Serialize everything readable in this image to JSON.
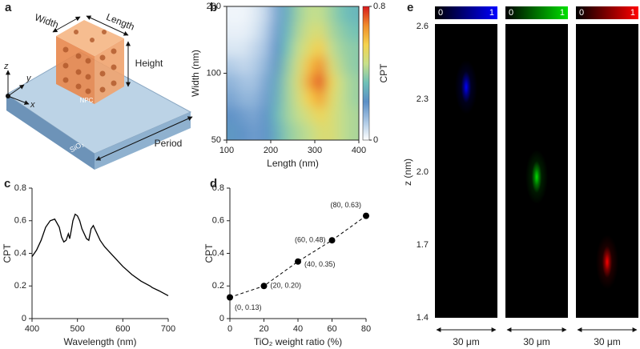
{
  "diagram": {
    "label": "a",
    "width": "Width",
    "length": "Length",
    "height": "Height",
    "period": "Period",
    "particle": "NPC",
    "substrate": "SiO₂",
    "axis_z": "z",
    "axis_y": "y",
    "axis_x": "x"
  },
  "chart_data": [
    {
      "type": "heatmap",
      "label": "b",
      "xlabel": "Length (nm)",
      "ylabel": "Width (nm)",
      "x": [
        112.5,
        137.5,
        162.5,
        187.5,
        212.5,
        237.5,
        262.5,
        287.5,
        312.5,
        337.5,
        362.5,
        387.5
      ],
      "y": [
        55,
        65,
        77,
        92,
        109,
        130,
        154,
        183
      ],
      "z": [
        [
          0.25,
          0.22,
          0.2,
          0.22,
          0.3,
          0.38,
          0.42,
          0.45,
          0.5,
          0.5,
          0.45,
          0.42
        ],
        [
          0.22,
          0.2,
          0.18,
          0.22,
          0.32,
          0.4,
          0.45,
          0.5,
          0.55,
          0.5,
          0.45,
          0.42
        ],
        [
          0.18,
          0.15,
          0.15,
          0.2,
          0.3,
          0.4,
          0.48,
          0.58,
          0.65,
          0.52,
          0.45,
          0.4
        ],
        [
          0.15,
          0.12,
          0.12,
          0.18,
          0.28,
          0.4,
          0.5,
          0.65,
          0.75,
          0.55,
          0.45,
          0.4
        ],
        [
          0.1,
          0.08,
          0.1,
          0.15,
          0.25,
          0.38,
          0.48,
          0.6,
          0.68,
          0.5,
          0.42,
          0.38
        ],
        [
          0.05,
          0.05,
          0.08,
          0.12,
          0.22,
          0.35,
          0.45,
          0.52,
          0.58,
          0.45,
          0.4,
          0.38
        ],
        [
          0.03,
          0.03,
          0.05,
          0.1,
          0.2,
          0.32,
          0.42,
          0.48,
          0.5,
          0.42,
          0.38,
          0.35
        ],
        [
          0.02,
          0.02,
          0.04,
          0.08,
          0.18,
          0.3,
          0.4,
          0.45,
          0.45,
          0.4,
          0.35,
          0.32
        ]
      ],
      "xlim": [
        100,
        400
      ],
      "xticks": [
        100,
        200,
        300,
        400
      ],
      "ylim": [
        50,
        200
      ],
      "yticks": [
        50,
        100,
        200
      ],
      "ylog": true,
      "colorscale": [
        "#ffffff",
        "#a9c6e3",
        "#5b8fc6",
        "#6fc1b8",
        "#c8e08a",
        "#f5d34d",
        "#f08c2a",
        "#d7191c"
      ],
      "colorbar": {
        "label": "CPT",
        "zlim": [
          0,
          0.8
        ],
        "zticks": [
          0,
          0.8
        ]
      }
    },
    {
      "type": "line",
      "label": "c",
      "xlabel": "Wavelength (nm)",
      "ylabel": "CPT",
      "color": "#000000",
      "x": [
        400,
        410,
        420,
        430,
        440,
        450,
        460,
        465,
        470,
        475,
        480,
        483,
        487,
        490,
        495,
        500,
        505,
        510,
        520,
        525,
        530,
        535,
        540,
        550,
        560,
        580,
        600,
        620,
        640,
        660,
        665,
        680,
        700
      ],
      "y": [
        0.38,
        0.42,
        0.48,
        0.56,
        0.6,
        0.61,
        0.56,
        0.5,
        0.47,
        0.48,
        0.52,
        0.49,
        0.55,
        0.6,
        0.64,
        0.63,
        0.6,
        0.55,
        0.49,
        0.48,
        0.55,
        0.57,
        0.54,
        0.48,
        0.44,
        0.38,
        0.32,
        0.27,
        0.23,
        0.2,
        0.19,
        0.17,
        0.14
      ],
      "xlim": [
        400,
        700
      ],
      "xticks": [
        400,
        500,
        600,
        700
      ],
      "ylim": [
        0,
        0.8
      ],
      "yticks": [
        0,
        0.2,
        0.4,
        0.6,
        0.8
      ]
    },
    {
      "type": "scatter",
      "label": "d",
      "xlabel": "TiO₂ weight ratio (%)",
      "ylabel": "CPT",
      "color": "#000000",
      "x": [
        0,
        20,
        40,
        60,
        80
      ],
      "y": [
        0.13,
        0.2,
        0.35,
        0.48,
        0.63
      ],
      "value_labels": [
        "(0, 0.13)",
        "(20, 0.20)",
        "(40, 0.35)",
        "(60, 0.48)",
        "(80, 0.63)"
      ],
      "xlim": [
        0,
        80
      ],
      "xticks": [
        0,
        20,
        40,
        60,
        80
      ],
      "ylim": [
        0,
        0.8
      ],
      "yticks": [
        0,
        0.2,
        0.4,
        0.6,
        0.8
      ]
    },
    {
      "type": "spots",
      "label": "e",
      "ylabel": "z (nm)",
      "scale_bar": "30 μm",
      "ylim": [
        1.4,
        2.6
      ],
      "yticks": [
        1.4,
        1.7,
        {
          "value": 2,
          "label": "2.0"
        },
        2.3,
        2.6
      ],
      "colorbar_ticks": [
        0,
        1
      ],
      "panels": [
        {
          "color": "#0000ff",
          "z": 2.35
        },
        {
          "color": "#00e000",
          "z": 1.98
        },
        {
          "color": "#ff0000",
          "z": 1.63
        }
      ]
    }
  ]
}
